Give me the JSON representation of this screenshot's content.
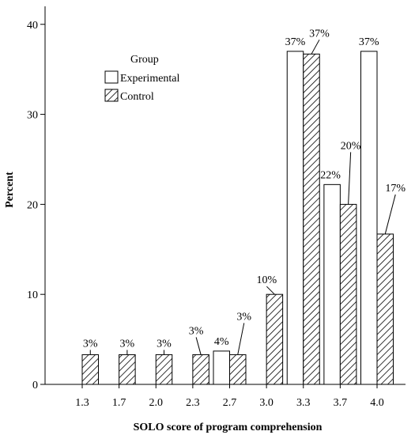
{
  "chart_data": {
    "type": "bar",
    "xlabel": "SOLO score of program comprehension",
    "ylabel": "Percent",
    "ylim": [
      0,
      42
    ],
    "yticks": [
      0,
      10,
      20,
      30,
      40
    ],
    "categories": [
      "1.3",
      "1.7",
      "2.0",
      "2.3",
      "2.7",
      "3.0",
      "3.3",
      "3.7",
      "4.0"
    ],
    "legend": {
      "title": "Group",
      "placement": "upper-left"
    },
    "series": [
      {
        "name": "Experimental",
        "fill": "#ffffff",
        "pattern": "none",
        "values": [
          null,
          null,
          null,
          null,
          3.7,
          null,
          37,
          22.2,
          37
        ],
        "labels": [
          "",
          "",
          "",
          "",
          "4%",
          "",
          "37%",
          "22%",
          "37%"
        ]
      },
      {
        "name": "Control",
        "fill": "#ffffff",
        "pattern": "diagonal-hatch",
        "values": [
          3.3,
          3.3,
          3.3,
          3.3,
          3.3,
          10,
          36.7,
          20,
          16.7
        ],
        "labels": [
          "3%",
          "3%",
          "3%",
          "3%",
          "3%",
          "10%",
          "37%",
          "20%",
          "17%"
        ]
      }
    ]
  }
}
